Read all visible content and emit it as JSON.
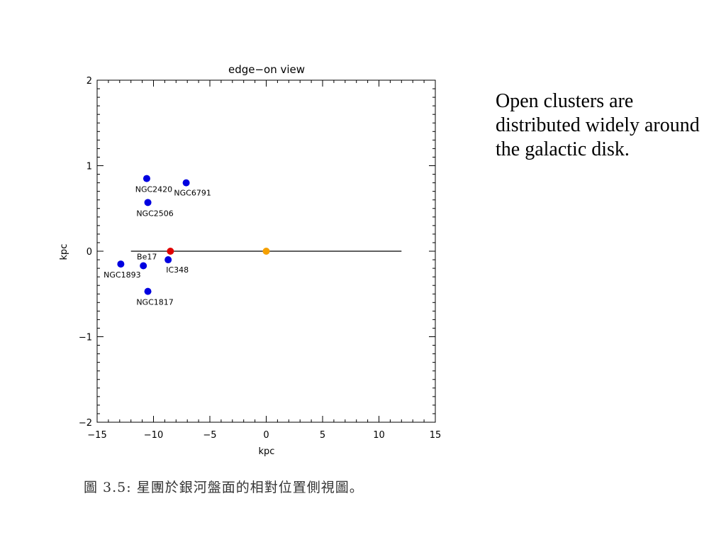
{
  "side_text": "Open clusters are distributed widely around the galactic disk.",
  "caption": "圖 3.5: 星團於銀河盤面的相對位置側視圖。",
  "colors": {
    "cluster": "#0000e0",
    "sun": "#e00000",
    "galactic_center": "#f5a000",
    "disk_line": "#000000"
  },
  "chart_data": {
    "type": "scatter",
    "title": "edge−on view",
    "xlabel": "kpc",
    "ylabel": "kpc",
    "xlim": [
      -15,
      15
    ],
    "ylim": [
      -2,
      2
    ],
    "xticks": [
      -15,
      -10,
      -5,
      0,
      5,
      10,
      15
    ],
    "xtick_labels": [
      "−15",
      "−10",
      "−5",
      "0",
      "5",
      "10",
      "15"
    ],
    "yticks": [
      -2,
      -1,
      0,
      1,
      2
    ],
    "ytick_labels": [
      "−2",
      "−1",
      "0",
      "1",
      "2"
    ],
    "grid": false,
    "disk_line": {
      "x": [
        -12,
        12
      ],
      "y": 0
    },
    "points": [
      {
        "label": "NGC2420",
        "x": -10.6,
        "y": 0.85,
        "kind": "cluster"
      },
      {
        "label": "NGC6791",
        "x": -7.1,
        "y": 0.8,
        "kind": "cluster"
      },
      {
        "label": "NGC2506",
        "x": -10.5,
        "y": 0.57,
        "kind": "cluster"
      },
      {
        "label": "Be17",
        "x": -10.9,
        "y": -0.17,
        "kind": "cluster"
      },
      {
        "label": "NGC1893",
        "x": -12.9,
        "y": -0.15,
        "kind": "cluster"
      },
      {
        "label": "IC348",
        "x": -8.7,
        "y": -0.1,
        "kind": "cluster"
      },
      {
        "label": "NGC1817",
        "x": -10.5,
        "y": -0.47,
        "kind": "cluster"
      },
      {
        "label": "",
        "x": -8.5,
        "y": 0.0,
        "kind": "sun"
      },
      {
        "label": "",
        "x": 0.0,
        "y": 0.0,
        "kind": "galactic_center"
      }
    ]
  }
}
